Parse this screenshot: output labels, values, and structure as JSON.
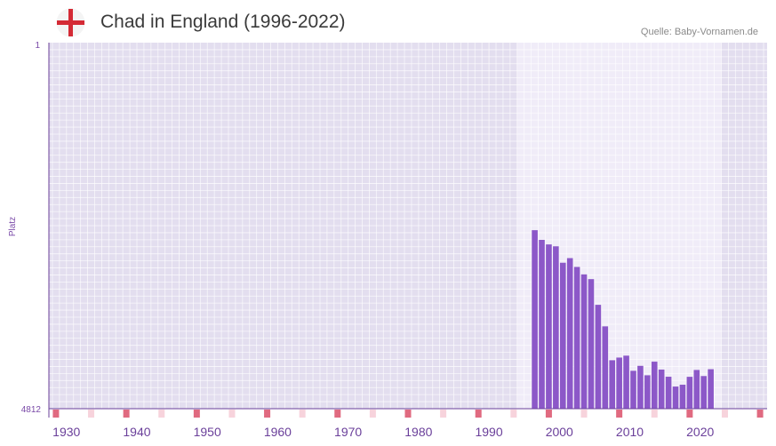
{
  "header": {
    "title": "Chad in England (1996-2022)",
    "source": "Quelle: Baby-Vornamen.de",
    "flag": "england-flag-icon"
  },
  "chart_data": {
    "type": "bar",
    "title": "Chad in England (1996-2022)",
    "xlabel": "",
    "ylabel": "Platz",
    "y_axis_reversed": true,
    "ylim": [
      4812,
      1
    ],
    "y_ticks": [
      "1",
      "4812"
    ],
    "x_range": [
      1927,
      2029
    ],
    "x_ticks": [
      1930,
      1940,
      1950,
      1960,
      1970,
      1980,
      1990,
      2000,
      2010,
      2020
    ],
    "highlight_range": [
      1994,
      2022
    ],
    "grid": true,
    "x": [
      1996,
      1997,
      1998,
      1999,
      2000,
      2001,
      2002,
      2003,
      2004,
      2005,
      2006,
      2007,
      2008,
      2009,
      2010,
      2011,
      2012,
      2013,
      2014,
      2015,
      2016,
      2017,
      2018,
      2019,
      2020,
      2021,
      2022
    ],
    "values": [
      2466,
      2593,
      2653,
      2678,
      2894,
      2833,
      2949,
      3047,
      3109,
      3447,
      3730,
      4175,
      4140,
      4115,
      4314,
      4249,
      4373,
      4194,
      4298,
      4392,
      4521,
      4497,
      4393,
      4303,
      4383,
      4293,
      4812
    ],
    "colors": {
      "bar": "#8c58c8",
      "plot_bg": "#e3deef",
      "highlight_bg": "#f0ecf8",
      "axis": "#6a3f9a",
      "marker_strong": "#e06a80",
      "marker_light": "#f7d3dc"
    }
  }
}
